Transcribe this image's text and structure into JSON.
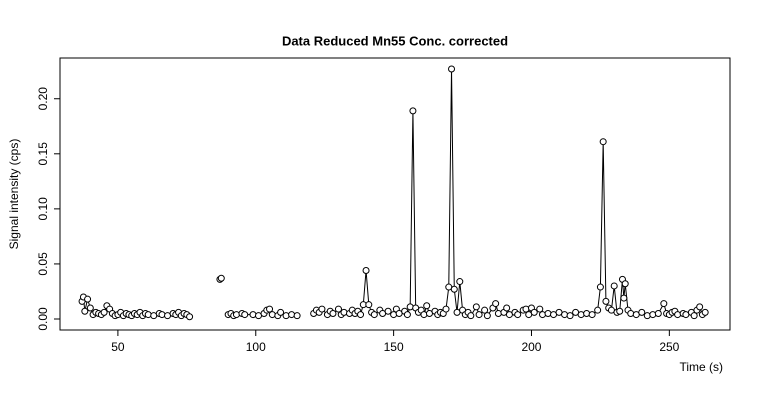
{
  "chart_data": {
    "type": "line",
    "markers": true,
    "color": "#000000",
    "title": "Data Reduced Mn55 Conc. corrected",
    "xlabel": "Time (s)",
    "ylabel": "Signal intensity (cps)",
    "xlim": [
      29,
      272
    ],
    "ylim": [
      -0.01,
      0.237
    ],
    "xticks": [
      50,
      100,
      150,
      200,
      250
    ],
    "yticks": [
      {
        "value": 0,
        "label": "0.00"
      },
      0.05,
      {
        "value": 0.1,
        "label": "0.10"
      },
      0.15,
      {
        "value": 0.2,
        "label": "0.20"
      }
    ],
    "x": [
      37,
      37.5,
      38,
      39,
      40,
      41,
      42,
      43,
      44,
      45,
      46,
      47,
      48,
      49,
      50,
      51,
      52,
      53,
      54,
      55,
      56,
      57,
      58,
      59,
      60,
      61,
      63,
      65,
      66,
      68,
      70,
      71,
      72,
      73,
      74,
      75,
      76,
      80,
      87,
      87.5,
      89,
      90,
      91,
      92,
      93,
      95,
      96,
      99,
      101,
      103,
      104,
      105,
      106,
      108,
      109,
      111,
      113,
      115,
      118,
      121,
      122,
      123,
      124,
      126,
      127,
      128,
      130,
      131,
      132,
      134,
      135,
      136,
      137,
      138,
      139,
      140,
      141,
      142,
      143,
      145,
      146,
      148,
      150,
      151,
      152,
      154,
      155,
      156,
      157,
      158,
      159,
      160,
      161,
      162,
      163,
      165,
      166,
      167,
      168,
      169,
      170,
      171,
      172,
      173,
      174,
      175,
      176,
      177,
      178,
      180,
      181,
      183,
      184,
      186,
      187,
      188,
      190,
      191,
      192,
      194,
      195,
      197,
      198,
      199,
      200,
      201,
      203,
      204,
      206,
      208,
      210,
      212,
      214,
      216,
      218,
      220,
      222,
      224,
      225,
      226,
      227,
      228,
      229,
      230,
      231,
      232,
      233,
      233.5,
      234,
      235,
      236,
      238,
      240,
      242,
      244,
      246,
      248,
      249,
      250,
      251,
      252,
      253,
      255,
      256,
      258,
      259,
      260,
      261,
      262,
      263
    ],
    "values": [
      0.016,
      0.02,
      0.007,
      0.018,
      0.01,
      0.004,
      0.006,
      0.005,
      0.004,
      0.006,
      0.012,
      0.009,
      0.005,
      0.003,
      0.004,
      0.006,
      0.003,
      0.005,
      0.004,
      0.003,
      0.005,
      0.004,
      0.006,
      0.003,
      0.005,
      0.004,
      0.003,
      0.005,
      0.004,
      0.003,
      0.005,
      0.004,
      0.006,
      0.003,
      0.005,
      0.004,
      0.002,
      null,
      0.036,
      0.037,
      null,
      0.004,
      0.005,
      0.003,
      0.004,
      0.005,
      0.004,
      0.004,
      0.003,
      0.005,
      0.008,
      0.009,
      0.004,
      0.003,
      0.006,
      0.003,
      0.004,
      0.003,
      null,
      0.005,
      0.008,
      0.006,
      0.009,
      0.004,
      0.007,
      0.005,
      0.009,
      0.004,
      0.006,
      0.005,
      0.008,
      0.005,
      0.007,
      0.004,
      0.013,
      0.044,
      0.013,
      0.006,
      0.004,
      0.008,
      0.005,
      0.007,
      0.004,
      0.009,
      0.005,
      0.007,
      0.004,
      0.011,
      0.189,
      0.01,
      0.006,
      0.008,
      0.004,
      0.012,
      0.005,
      0.007,
      0.004,
      0.006,
      0.005,
      0.009,
      0.029,
      0.227,
      0.027,
      0.006,
      0.034,
      0.008,
      0.004,
      0.006,
      0.003,
      0.011,
      0.004,
      0.008,
      0.003,
      0.01,
      0.014,
      0.005,
      0.006,
      0.01,
      0.004,
      0.006,
      0.004,
      0.008,
      0.009,
      0.004,
      0.01,
      0.006,
      0.009,
      0.004,
      0.005,
      0.004,
      0.006,
      0.004,
      0.003,
      0.006,
      0.004,
      0.005,
      0.004,
      0.008,
      0.029,
      0.161,
      0.016,
      0.01,
      0.008,
      0.03,
      0.006,
      0.007,
      0.036,
      0.019,
      0.032,
      0.008,
      0.005,
      0.004,
      0.006,
      0.003,
      0.004,
      0.005,
      0.014,
      0.005,
      0.004,
      0.006,
      0.007,
      0.004,
      0.005,
      0.004,
      0.006,
      0.003,
      0.008,
      0.011,
      0.004,
      0.006
    ]
  }
}
